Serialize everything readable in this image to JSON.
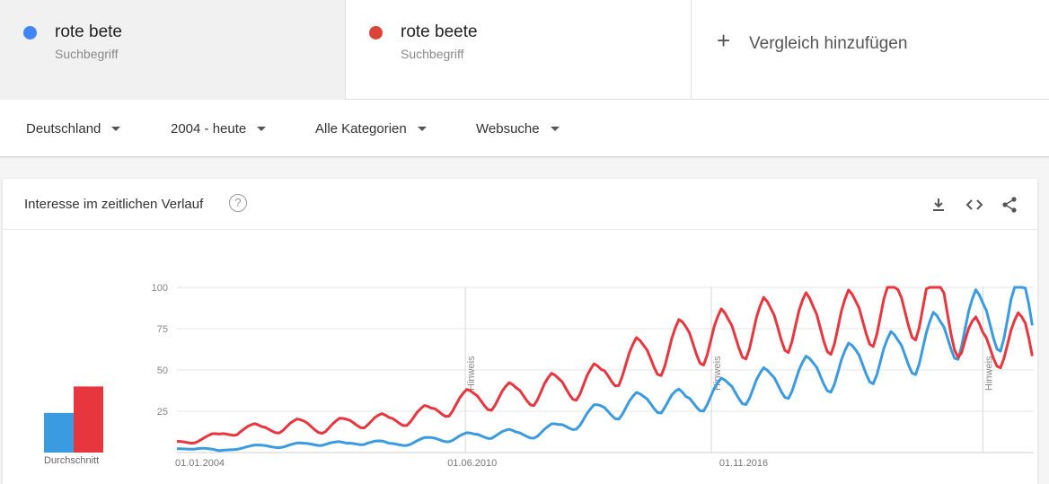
{
  "terms": [
    {
      "name": "rote bete",
      "type": "Suchbegriff",
      "color": "#4285f4"
    },
    {
      "name": "rote beete",
      "type": "Suchbegriff",
      "color": "#db4437"
    }
  ],
  "add_compare": {
    "label": "Vergleich hinzufügen",
    "icon": "plus-icon"
  },
  "filters": {
    "region": "Deutschland",
    "period": "2004 - heute",
    "category": "Alle Kategorien",
    "search_type": "Websuche"
  },
  "card": {
    "title": "Interesse im zeitlichen Verlauf",
    "help": "?",
    "tools": [
      "download-icon",
      "embed-icon",
      "share-icon"
    ],
    "average_label": "Durchschnitt"
  },
  "chart_data": {
    "type": "line",
    "x_tick_labels": [
      "01.01.2004",
      "01.06.2010",
      "01.11.2016"
    ],
    "y_ticks": [
      25,
      50,
      75,
      100
    ],
    "ylim": [
      0,
      100
    ],
    "grid": true,
    "note_label": "Hinweis",
    "notes_at_year": [
      2010.8,
      2016.6,
      2023.0
    ],
    "x_start_year": 2004.0,
    "x_end_year": 2024.2,
    "averages": [
      {
        "name": "rote bete",
        "value": 24,
        "color": "#3b9be0"
      },
      {
        "name": "rote beete",
        "value": 40,
        "color": "#e8363f"
      }
    ],
    "series": [
      {
        "name": "rote bete",
        "color": "#3b9be0",
        "anchors": [
          [
            2004,
            2
          ],
          [
            2004.5,
            3
          ],
          [
            2005,
            1
          ],
          [
            2005.5,
            3
          ],
          [
            2006,
            4
          ],
          [
            2006.5,
            4
          ],
          [
            2007,
            5
          ],
          [
            2007.5,
            6
          ],
          [
            2008,
            5
          ],
          [
            2008.5,
            7
          ],
          [
            2009,
            5
          ],
          [
            2009.5,
            6
          ],
          [
            2010,
            8
          ],
          [
            2010.5,
            9
          ],
          [
            2011,
            10
          ],
          [
            2011.5,
            12
          ],
          [
            2012,
            11
          ],
          [
            2012.5,
            12
          ],
          [
            2013,
            15
          ],
          [
            2013.5,
            20
          ],
          [
            2014,
            25
          ],
          [
            2014.5,
            28
          ],
          [
            2015,
            30
          ],
          [
            2015.5,
            33
          ],
          [
            2016,
            30
          ],
          [
            2016.5,
            35
          ],
          [
            2017,
            37
          ],
          [
            2017.5,
            40
          ],
          [
            2018,
            42
          ],
          [
            2018.5,
            45
          ],
          [
            2019,
            48
          ],
          [
            2019.5,
            50
          ],
          [
            2020,
            55
          ],
          [
            2020.5,
            57
          ],
          [
            2021,
            60
          ],
          [
            2021.5,
            65
          ],
          [
            2022,
            70
          ],
          [
            2022.5,
            78
          ],
          [
            2023,
            80
          ],
          [
            2023.5,
            84
          ],
          [
            2024,
            88
          ],
          [
            2024.2,
            79
          ]
        ]
      },
      {
        "name": "rote beete",
        "color": "#e8363f",
        "anchors": [
          [
            2004,
            6
          ],
          [
            2004.5,
            8
          ],
          [
            2005,
            10
          ],
          [
            2005.5,
            15
          ],
          [
            2006,
            14
          ],
          [
            2006.5,
            16
          ],
          [
            2007,
            17
          ],
          [
            2007.5,
            15
          ],
          [
            2008,
            18
          ],
          [
            2008.5,
            20
          ],
          [
            2009,
            19
          ],
          [
            2009.5,
            22
          ],
          [
            2010,
            24
          ],
          [
            2010.5,
            30
          ],
          [
            2011,
            32
          ],
          [
            2011.5,
            34
          ],
          [
            2012,
            35
          ],
          [
            2012.5,
            38
          ],
          [
            2013,
            40
          ],
          [
            2013.5,
            42
          ],
          [
            2014,
            45
          ],
          [
            2014.5,
            55
          ],
          [
            2015,
            58
          ],
          [
            2015.5,
            62
          ],
          [
            2016,
            68
          ],
          [
            2016.5,
            70
          ],
          [
            2017,
            72
          ],
          [
            2017.5,
            75
          ],
          [
            2018,
            78
          ],
          [
            2018.5,
            80
          ],
          [
            2019,
            79
          ],
          [
            2019.5,
            78
          ],
          [
            2020,
            82
          ],
          [
            2020.5,
            85
          ],
          [
            2021,
            88
          ],
          [
            2021.5,
            90
          ],
          [
            2022,
            95
          ],
          [
            2022.5,
            72
          ],
          [
            2023,
            65
          ],
          [
            2023.5,
            68
          ],
          [
            2024,
            70
          ],
          [
            2024.2,
            59
          ]
        ]
      }
    ]
  }
}
